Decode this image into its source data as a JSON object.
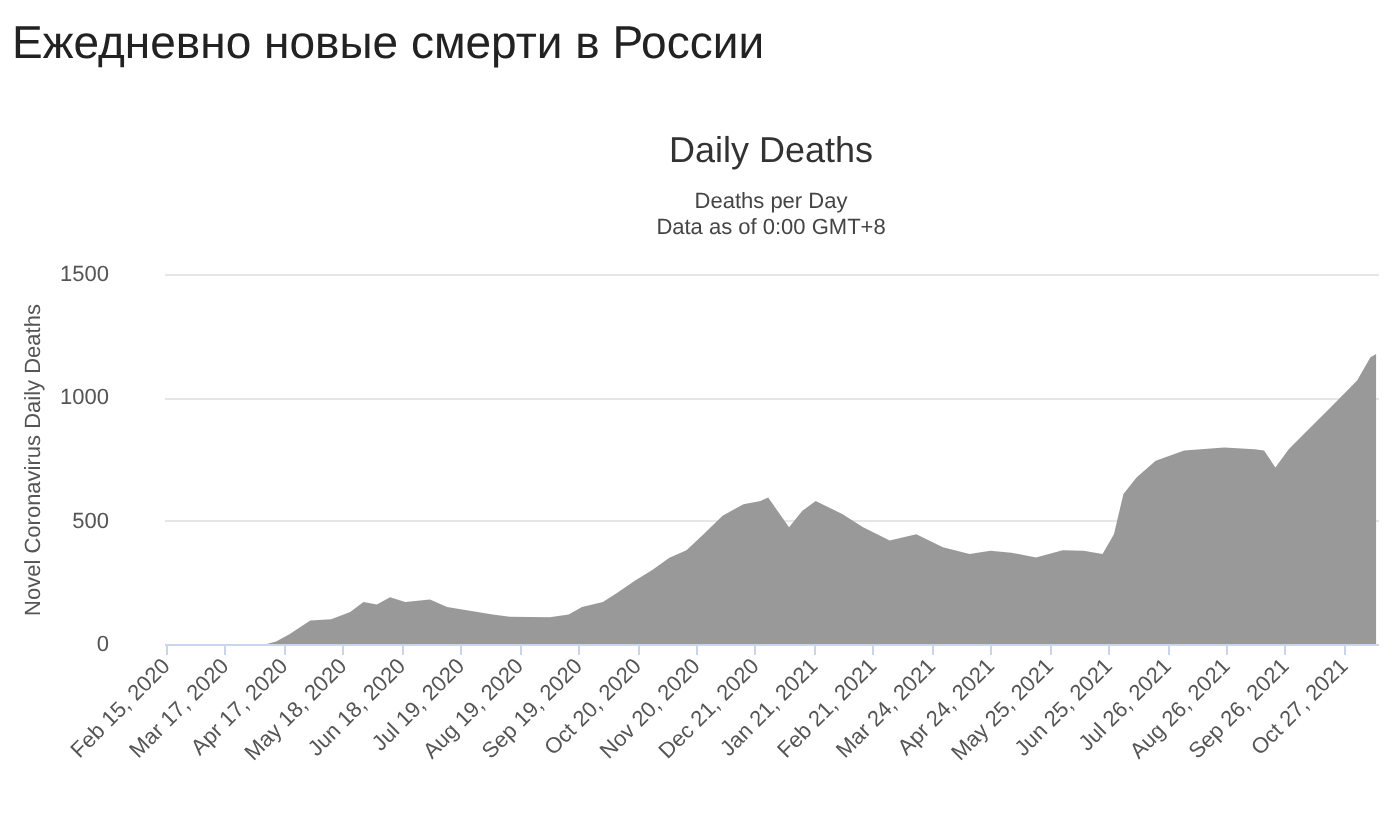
{
  "chart_data": {
    "type": "area",
    "title": "Daily Deaths",
    "subtitle": "Deaths per Day\nData as of 0:00 GMT+8",
    "ylabel": "Novel Coronavirus Daily Deaths",
    "annotations": [
      "Ежедневно новые смерти в России"
    ],
    "x": [
      "2020-02-15",
      "2020-04-08",
      "2020-04-13",
      "2020-04-20",
      "2020-05-01",
      "2020-05-12",
      "2020-05-22",
      "2020-05-29",
      "2020-06-05",
      "2020-06-12",
      "2020-06-20",
      "2020-07-03",
      "2020-07-12",
      "2020-07-24",
      "2020-08-05",
      "2020-08-14",
      "2020-09-04",
      "2020-09-14",
      "2020-09-21",
      "2020-10-02",
      "2020-10-10",
      "2020-10-19",
      "2020-10-28",
      "2020-11-06",
      "2020-11-15",
      "2020-11-24",
      "2020-12-04",
      "2020-12-15",
      "2020-12-24",
      "2020-12-28",
      "2021-01-08",
      "2021-01-15",
      "2021-01-22",
      "2021-02-05",
      "2021-02-16",
      "2021-03-02",
      "2021-03-16",
      "2021-03-30",
      "2021-04-13",
      "2021-04-24",
      "2021-05-05",
      "2021-05-18",
      "2021-06-01",
      "2021-06-12",
      "2021-06-22",
      "2021-06-28",
      "2021-07-03",
      "2021-07-10",
      "2021-07-20",
      "2021-08-04",
      "2021-08-25",
      "2021-09-10",
      "2021-09-15",
      "2021-09-21",
      "2021-09-28",
      "2021-10-06",
      "2021-10-20",
      "2021-11-03",
      "2021-11-10",
      "2021-11-13"
    ],
    "series": [
      {
        "color": "#999999",
        "values": [
          0,
          0,
          10,
          40,
          95,
          100,
          130,
          170,
          160,
          190,
          170,
          180,
          150,
          135,
          120,
          110,
          108,
          120,
          150,
          170,
          210,
          257,
          300,
          350,
          380,
          445,
          520,
          567,
          580,
          594,
          473,
          540,
          580,
          527,
          473,
          420,
          445,
          392,
          365,
          378,
          370,
          351,
          380,
          378,
          365,
          445,
          608,
          676,
          743,
          784,
          797,
          790,
          784,
          716,
          790,
          851,
          959,
          1068,
          1162,
          1176
        ]
      }
    ],
    "xlim": [
      "2020-02-14",
      "2021-11-14"
    ],
    "xticks": [
      {
        "value": "2020-02-15",
        "label": "Feb 15, 2020"
      },
      {
        "value": "2020-03-17",
        "label": "Mar 17, 2020"
      },
      {
        "value": "2020-04-17",
        "label": "Apr 17, 2020"
      },
      {
        "value": "2020-05-18",
        "label": "May 18, 2020"
      },
      {
        "value": "2020-06-18",
        "label": "Jun 18, 2020"
      },
      {
        "value": "2020-07-19",
        "label": "Jul 19, 2020"
      },
      {
        "value": "2020-08-19",
        "label": "Aug 19, 2020"
      },
      {
        "value": "2020-09-19",
        "label": "Sep 19, 2020"
      },
      {
        "value": "2020-10-20",
        "label": "Oct 20, 2020"
      },
      {
        "value": "2020-11-20",
        "label": "Nov 20, 2020"
      },
      {
        "value": "2020-12-21",
        "label": "Dec 21, 2020"
      },
      {
        "value": "2021-01-21",
        "label": "Jan 21, 2021"
      },
      {
        "value": "2021-02-21",
        "label": "Feb 21, 2021"
      },
      {
        "value": "2021-03-24",
        "label": "Mar 24, 2021"
      },
      {
        "value": "2021-04-24",
        "label": "Apr 24, 2021"
      },
      {
        "value": "2021-05-25",
        "label": "May 25, 2021"
      },
      {
        "value": "2021-06-25",
        "label": "Jun 25, 2021"
      },
      {
        "value": "2021-07-26",
        "label": "Jul 26, 2021"
      },
      {
        "value": "2021-08-26",
        "label": "Aug 26, 2021"
      },
      {
        "value": "2021-09-26",
        "label": "Sep 26, 2021"
      },
      {
        "value": "2021-10-27",
        "label": "Oct 27, 2021"
      }
    ],
    "ylim": [
      0,
      1500
    ],
    "yticks": [
      0,
      500,
      1000,
      1500
    ],
    "grid": "y"
  }
}
